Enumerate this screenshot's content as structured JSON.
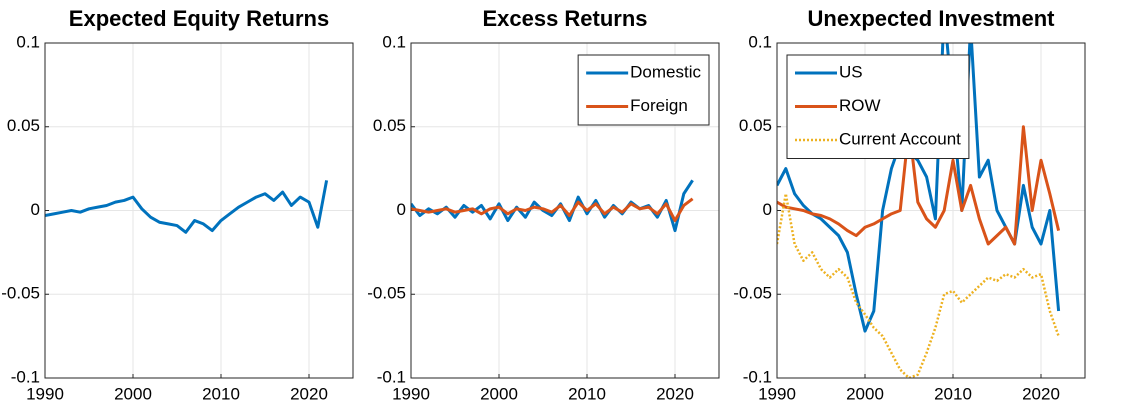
{
  "chart_data": [
    {
      "type": "line",
      "title": "Expected Equity Returns",
      "x": [
        1990,
        1991,
        1992,
        1993,
        1994,
        1995,
        1996,
        1997,
        1998,
        1999,
        2000,
        2001,
        2002,
        2003,
        2004,
        2005,
        2006,
        2007,
        2008,
        2009,
        2010,
        2011,
        2012,
        2013,
        2014,
        2015,
        2016,
        2017,
        2018,
        2019,
        2020,
        2021,
        2022
      ],
      "xlim": [
        1990,
        2025
      ],
      "xticks": [
        1990,
        2000,
        2010,
        2020
      ],
      "ylim": [
        -0.1,
        0.1
      ],
      "yticks": [
        -0.1,
        -0.05,
        0,
        0.05,
        0.1
      ],
      "grid": true,
      "series": [
        {
          "name": "Expected Equity Returns",
          "color": "#0072bd",
          "style": "solid",
          "values": [
            -0.003,
            -0.002,
            -0.001,
            0.0,
            -0.001,
            0.001,
            0.002,
            0.003,
            0.005,
            0.006,
            0.008,
            0.001,
            -0.004,
            -0.007,
            -0.008,
            -0.009,
            -0.013,
            -0.006,
            -0.008,
            -0.012,
            -0.006,
            -0.002,
            0.002,
            0.005,
            0.008,
            0.01,
            0.006,
            0.011,
            0.003,
            0.008,
            0.005,
            -0.01,
            0.018
          ]
        }
      ]
    },
    {
      "type": "line",
      "title": "Excess Returns",
      "x": [
        1990,
        1991,
        1992,
        1993,
        1994,
        1995,
        1996,
        1997,
        1998,
        1999,
        2000,
        2001,
        2002,
        2003,
        2004,
        2005,
        2006,
        2007,
        2008,
        2009,
        2010,
        2011,
        2012,
        2013,
        2014,
        2015,
        2016,
        2017,
        2018,
        2019,
        2020,
        2021,
        2022
      ],
      "xlim": [
        1990,
        2025
      ],
      "xticks": [
        1990,
        2000,
        2010,
        2020
      ],
      "ylim": [
        -0.1,
        0.1
      ],
      "yticks": [
        -0.1,
        -0.05,
        0,
        0.05,
        0.1
      ],
      "grid": true,
      "legend": "northeast",
      "series": [
        {
          "name": "Domestic",
          "color": "#0072bd",
          "style": "solid",
          "values": [
            0.004,
            -0.003,
            0.001,
            -0.002,
            0.002,
            -0.004,
            0.003,
            -0.001,
            0.003,
            -0.005,
            0.004,
            -0.006,
            0.002,
            -0.004,
            0.005,
            0.0,
            -0.003,
            0.004,
            -0.006,
            0.008,
            -0.002,
            0.006,
            -0.004,
            0.003,
            -0.002,
            0.005,
            0.001,
            0.003,
            -0.004,
            0.006,
            -0.012,
            0.01,
            0.018
          ]
        },
        {
          "name": "Foreign",
          "color": "#d95319",
          "style": "solid",
          "values": [
            0.001,
            0.0,
            -0.001,
            0.0,
            0.001,
            -0.001,
            0.0,
            0.001,
            -0.002,
            0.001,
            0.002,
            -0.002,
            0.001,
            0.0,
            0.002,
            0.001,
            -0.001,
            0.003,
            -0.003,
            0.005,
            0.0,
            0.004,
            -0.002,
            0.002,
            -0.001,
            0.004,
            0.001,
            0.002,
            -0.002,
            0.004,
            -0.006,
            0.003,
            0.007
          ]
        }
      ]
    },
    {
      "type": "line",
      "title": "Unexpected Investment",
      "x": [
        1990,
        1991,
        1992,
        1993,
        1994,
        1995,
        1996,
        1997,
        1998,
        1999,
        2000,
        2001,
        2002,
        2003,
        2004,
        2005,
        2006,
        2007,
        2008,
        2009,
        2010,
        2011,
        2012,
        2013,
        2014,
        2015,
        2016,
        2017,
        2018,
        2019,
        2020,
        2021,
        2022
      ],
      "xlim": [
        1990,
        2025
      ],
      "xticks": [
        1990,
        2000,
        2010,
        2020
      ],
      "ylim": [
        -0.1,
        0.1
      ],
      "yticks": [
        -0.1,
        -0.05,
        0,
        0.05,
        0.1
      ],
      "grid": true,
      "legend": "northwest",
      "series": [
        {
          "name": "US",
          "color": "#0072bd",
          "style": "solid",
          "values": [
            0.015,
            0.025,
            0.01,
            0.003,
            -0.002,
            -0.005,
            -0.01,
            -0.015,
            -0.025,
            -0.05,
            -0.072,
            -0.06,
            0.0,
            0.025,
            0.04,
            0.035,
            0.03,
            0.02,
            -0.005,
            0.12,
            0.06,
            0.0,
            0.11,
            0.02,
            0.03,
            0.0,
            -0.01,
            -0.02,
            0.015,
            -0.01,
            -0.02,
            0.0,
            -0.06
          ]
        },
        {
          "name": "ROW",
          "color": "#d95319",
          "style": "solid",
          "values": [
            0.005,
            0.002,
            0.001,
            0.0,
            -0.002,
            -0.003,
            -0.005,
            -0.008,
            -0.012,
            -0.015,
            -0.01,
            -0.008,
            -0.005,
            -0.002,
            0.0,
            0.05,
            0.005,
            -0.005,
            -0.01,
            0.0,
            0.03,
            0.0,
            0.015,
            -0.005,
            -0.02,
            -0.015,
            -0.01,
            -0.02,
            0.05,
            0.0,
            0.03,
            0.01,
            -0.012
          ]
        },
        {
          "name": "Current Account",
          "color": "#edb120",
          "style": "dotted",
          "values": [
            -0.02,
            0.01,
            -0.02,
            -0.03,
            -0.025,
            -0.035,
            -0.04,
            -0.035,
            -0.04,
            -0.055,
            -0.062,
            -0.07,
            -0.075,
            -0.085,
            -0.095,
            -0.1,
            -0.098,
            -0.085,
            -0.07,
            -0.05,
            -0.048,
            -0.055,
            -0.05,
            -0.045,
            -0.04,
            -0.042,
            -0.038,
            -0.04,
            -0.035,
            -0.04,
            -0.038,
            -0.06,
            -0.075
          ]
        }
      ]
    }
  ]
}
